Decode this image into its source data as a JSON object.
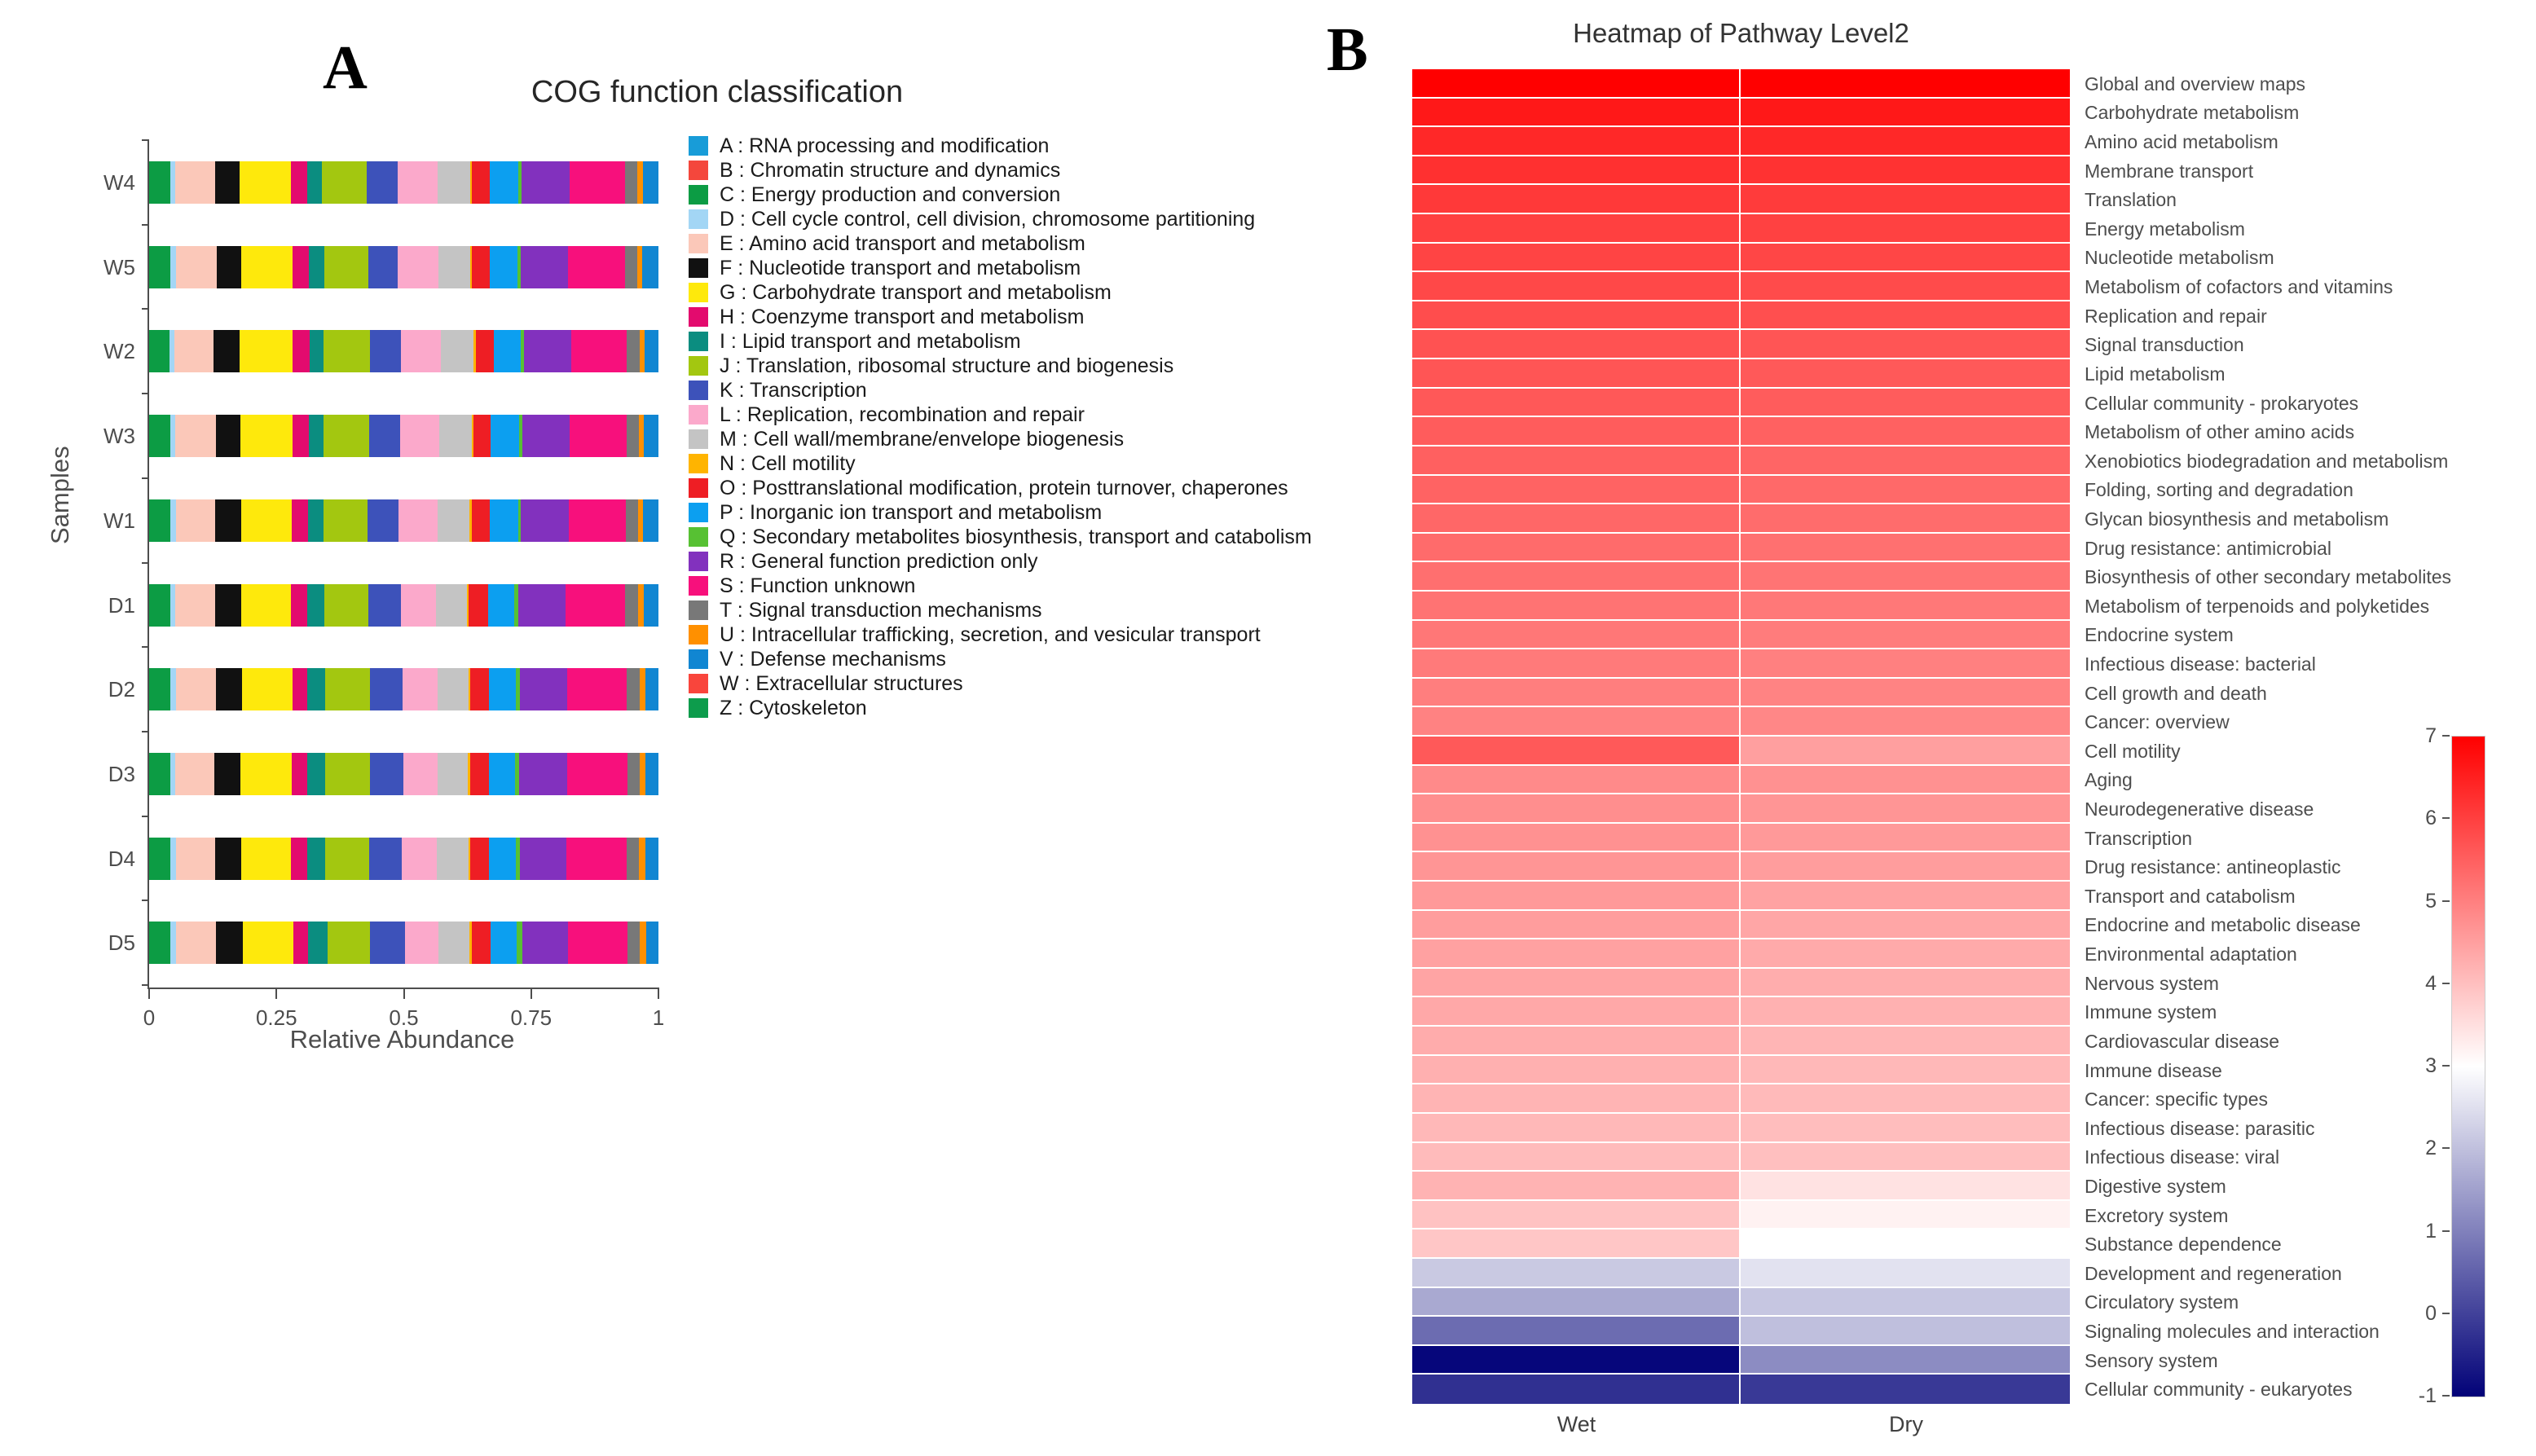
{
  "page": {
    "background": "#ffffff"
  },
  "panel_a": {
    "letter": "A"
  },
  "panel_b": {
    "letter": "B"
  },
  "chart_data": [
    {
      "type": "bar",
      "stacked": true,
      "orientation": "horizontal",
      "title": "COG function classification",
      "xlabel": "Relative Abundance",
      "ylabel": "Samples",
      "xlim": [
        0,
        1
      ],
      "x_ticks": [
        {
          "label": "0",
          "value": 0
        },
        {
          "label": "0.25",
          "value": 0.25
        },
        {
          "label": "0.5",
          "value": 0.5
        },
        {
          "label": "0.75",
          "value": 0.75
        },
        {
          "label": "1",
          "value": 1
        }
      ],
      "categories": [
        "W4",
        "W5",
        "W2",
        "W3",
        "W1",
        "D1",
        "D2",
        "D3",
        "D4",
        "D5"
      ],
      "series": [
        {
          "code": "A",
          "label": "A : RNA processing and modification",
          "color": "#189CD8",
          "values": [
            0,
            0,
            0,
            0,
            0,
            0,
            0,
            0,
            0,
            0
          ]
        },
        {
          "code": "B",
          "label": "B : Chromatin structure and dynamics",
          "color": "#F4473C",
          "values": [
            0,
            0,
            0,
            0,
            0,
            0,
            0,
            0,
            0,
            0
          ]
        },
        {
          "code": "C",
          "label": "C : Energy production and conversion",
          "color": "#0C9C44",
          "values": [
            0.041,
            0.042,
            0.04,
            0.041,
            0.042,
            0.041,
            0.042,
            0.041,
            0.042,
            0.041
          ]
        },
        {
          "code": "D",
          "label": "D : Cell cycle control, cell division, chromosome partitioning",
          "color": "#A3D6F5",
          "values": [
            0.01,
            0.01,
            0.01,
            0.011,
            0.01,
            0.011,
            0.011,
            0.011,
            0.011,
            0.012
          ]
        },
        {
          "code": "E",
          "label": "E : Amino acid transport and metabolism",
          "color": "#FBC8B9",
          "values": [
            0.078,
            0.08,
            0.077,
            0.079,
            0.078,
            0.077,
            0.078,
            0.076,
            0.077,
            0.078
          ]
        },
        {
          "code": "F",
          "label": "F : Nucleotide transport and metabolism",
          "color": "#111111",
          "values": [
            0.049,
            0.048,
            0.05,
            0.049,
            0.05,
            0.052,
            0.051,
            0.052,
            0.051,
            0.053
          ]
        },
        {
          "code": "G",
          "label": "G : Carbohydrate transport and metabolism",
          "color": "#FEE90C",
          "values": [
            0.1,
            0.102,
            0.104,
            0.101,
            0.1,
            0.098,
            0.099,
            0.1,
            0.098,
            0.099
          ]
        },
        {
          "code": "H",
          "label": "H : Coenzyme transport and metabolism",
          "color": "#E30B6E",
          "values": [
            0.033,
            0.032,
            0.034,
            0.033,
            0.032,
            0.031,
            0.03,
            0.031,
            0.032,
            0.029
          ]
        },
        {
          "code": "I",
          "label": "I : Lipid transport and metabolism",
          "color": "#0B8D80",
          "values": [
            0.029,
            0.03,
            0.028,
            0.029,
            0.03,
            0.034,
            0.035,
            0.034,
            0.035,
            0.038
          ]
        },
        {
          "code": "J",
          "label": "J : Translation, ribosomal structure and biogenesis",
          "color": "#A3C710",
          "values": [
            0.088,
            0.086,
            0.09,
            0.089,
            0.087,
            0.086,
            0.087,
            0.088,
            0.086,
            0.084
          ]
        },
        {
          "code": "K",
          "label": "K : Transcription",
          "color": "#3D52BA",
          "values": [
            0.06,
            0.058,
            0.062,
            0.061,
            0.06,
            0.064,
            0.065,
            0.066,
            0.064,
            0.068
          ]
        },
        {
          "code": "L",
          "label": "L : Replication, recombination and repair",
          "color": "#FBA9CB",
          "values": [
            0.079,
            0.08,
            0.078,
            0.077,
            0.078,
            0.07,
            0.068,
            0.067,
            0.069,
            0.066
          ]
        },
        {
          "code": "M",
          "label": "M : Cell wall/membrane/envelope biogenesis",
          "color": "#C4C4C4",
          "values": [
            0.063,
            0.062,
            0.064,
            0.063,
            0.062,
            0.06,
            0.061,
            0.06,
            0.062,
            0.061
          ]
        },
        {
          "code": "N",
          "label": "N : Cell motility",
          "color": "#FFB400",
          "values": [
            0.004,
            0.004,
            0.004,
            0.004,
            0.004,
            0.004,
            0.004,
            0.004,
            0.004,
            0.004
          ]
        },
        {
          "code": "O",
          "label": "O : Posttranslational modification, protein turnover, chaperones",
          "color": "#EE1E24",
          "values": [
            0.035,
            0.034,
            0.035,
            0.034,
            0.036,
            0.037,
            0.036,
            0.037,
            0.036,
            0.038
          ]
        },
        {
          "code": "P",
          "label": "P : Inorganic ion transport and metabolism",
          "color": "#0C9FF0",
          "values": [
            0.056,
            0.055,
            0.054,
            0.056,
            0.055,
            0.052,
            0.053,
            0.052,
            0.053,
            0.051
          ]
        },
        {
          "code": "Q",
          "label": "Q : Secondary metabolites biosynthesis, transport and catabolism",
          "color": "#57C133",
          "values": [
            0.006,
            0.006,
            0.006,
            0.006,
            0.006,
            0.008,
            0.008,
            0.008,
            0.008,
            0.01
          ]
        },
        {
          "code": "R",
          "label": "R : General function prediction only",
          "color": "#8231BE",
          "values": [
            0.094,
            0.093,
            0.092,
            0.093,
            0.094,
            0.092,
            0.093,
            0.094,
            0.092,
            0.091
          ]
        },
        {
          "code": "S",
          "label": "S : Function unknown",
          "color": "#F7107C",
          "values": [
            0.11,
            0.112,
            0.11,
            0.111,
            0.112,
            0.118,
            0.117,
            0.118,
            0.117,
            0.116
          ]
        },
        {
          "code": "T",
          "label": "T : Signal transduction mechanisms",
          "color": "#787878",
          "values": [
            0.024,
            0.024,
            0.025,
            0.024,
            0.024,
            0.025,
            0.025,
            0.024,
            0.025,
            0.024
          ]
        },
        {
          "code": "U",
          "label": "U : Intracellular trafficking, secretion, and vesicular transport",
          "color": "#FF9000",
          "values": [
            0.01,
            0.01,
            0.01,
            0.01,
            0.01,
            0.012,
            0.012,
            0.012,
            0.012,
            0.013
          ]
        },
        {
          "code": "V",
          "label": "V : Defense mechanisms",
          "color": "#1186D2",
          "values": [
            0.031,
            0.032,
            0.027,
            0.029,
            0.03,
            0.028,
            0.025,
            0.025,
            0.026,
            0.024
          ]
        },
        {
          "code": "W",
          "label": "W : Extracellular structures",
          "color": "#F9453C",
          "values": [
            0,
            0,
            0,
            0,
            0,
            0,
            0,
            0,
            0,
            0
          ]
        },
        {
          "code": "Z",
          "label": "Z : Cytoskeleton",
          "color": "#0D9C4C",
          "values": [
            0,
            0,
            0,
            0,
            0,
            0,
            0,
            0,
            0,
            0
          ]
        }
      ]
    },
    {
      "type": "heatmap",
      "title": "Heatmap of Pathway Level2",
      "columns": [
        "Wet",
        "Dry"
      ],
      "rows": [
        "Global and overview maps",
        "Carbohydrate metabolism",
        "Amino acid metabolism",
        "Membrane transport",
        "Translation",
        "Energy metabolism",
        "Nucleotide metabolism",
        "Metabolism of cofactors and vitamins",
        "Replication and repair",
        "Signal transduction",
        "Lipid metabolism",
        "Cellular community - prokaryotes",
        "Metabolism of other amino acids",
        "Xenobiotics biodegradation and metabolism",
        "Folding, sorting and degradation",
        "Glycan biosynthesis and metabolism",
        "Drug resistance: antimicrobial",
        "Biosynthesis of other secondary metabolites",
        "Metabolism of terpenoids and polyketides",
        "Endocrine system",
        "Infectious disease: bacterial",
        "Cell growth and death",
        "Cancer: overview",
        "Cell motility",
        "Aging",
        "Neurodegenerative disease",
        "Transcription",
        "Drug resistance: antineoplastic",
        "Transport and catabolism",
        "Endocrine and metabolic disease",
        "Environmental adaptation",
        "Nervous system",
        "Immune system",
        "Cardiovascular disease",
        "Immune disease",
        "Cancer: specific types",
        "Infectious disease: parasitic",
        "Infectious disease: viral",
        "Digestive system",
        "Excretory system",
        "Substance dependence",
        "Development and regeneration",
        "Circulatory system",
        "Signaling molecules and interaction",
        "Sensory system",
        "Cellular community - eukaryotes"
      ],
      "values": [
        [
          7.0,
          7.0
        ],
        [
          6.62,
          6.62
        ],
        [
          6.38,
          6.38
        ],
        [
          6.25,
          6.22
        ],
        [
          6.1,
          6.08
        ],
        [
          6.0,
          5.98
        ],
        [
          5.94,
          5.9
        ],
        [
          5.87,
          5.83
        ],
        [
          5.8,
          5.76
        ],
        [
          5.72,
          5.66
        ],
        [
          5.67,
          5.6
        ],
        [
          5.62,
          5.55
        ],
        [
          5.56,
          5.48
        ],
        [
          5.5,
          5.42
        ],
        [
          5.44,
          5.36
        ],
        [
          5.38,
          5.3
        ],
        [
          5.32,
          5.24
        ],
        [
          5.26,
          5.18
        ],
        [
          5.2,
          5.12
        ],
        [
          5.14,
          5.06
        ],
        [
          5.08,
          5.0
        ],
        [
          5.02,
          4.94
        ],
        [
          4.96,
          4.88
        ],
        [
          5.6,
          4.5
        ],
        [
          4.84,
          4.72
        ],
        [
          4.78,
          4.66
        ],
        [
          4.72,
          4.6
        ],
        [
          4.66,
          4.54
        ],
        [
          4.6,
          4.46
        ],
        [
          4.54,
          4.4
        ],
        [
          4.48,
          4.34
        ],
        [
          4.42,
          4.28
        ],
        [
          4.36,
          4.22
        ],
        [
          4.3,
          4.16
        ],
        [
          4.24,
          4.12
        ],
        [
          4.18,
          4.08
        ],
        [
          4.12,
          4.04
        ],
        [
          4.06,
          4.0
        ],
        [
          4.2,
          3.45
        ],
        [
          3.95,
          3.2
        ],
        [
          3.9,
          3.0
        ],
        [
          2.15,
          2.55
        ],
        [
          1.65,
          2.1
        ],
        [
          0.7,
          2.0
        ],
        [
          -0.9,
          1.2
        ],
        [
          -0.25,
          -0.1
        ]
      ],
      "colorbar": {
        "min": -1,
        "max": 7,
        "mid_value": 3,
        "top_color": "#FF0000",
        "mid_color": "#FFFFFF",
        "bottom_color": "#020278",
        "ticks": [
          "7",
          "6",
          "5",
          "4",
          "3",
          "2",
          "1",
          "0",
          "-1"
        ]
      }
    }
  ]
}
